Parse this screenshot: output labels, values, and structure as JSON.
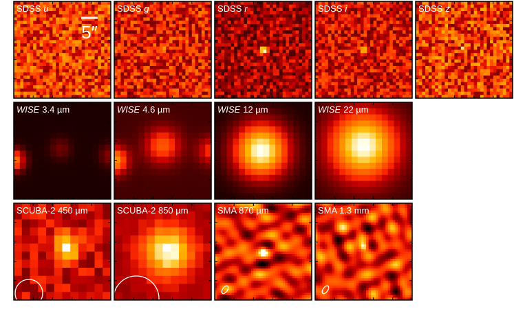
{
  "panels": [
    {
      "label": [
        {
          "text": "SDSS",
          "italic": false
        },
        {
          "text": "u",
          "italic": true
        }
      ]
    },
    {
      "label": [
        {
          "text": "SDSS",
          "italic": false
        },
        {
          "text": "g",
          "italic": true
        }
      ]
    },
    {
      "label": [
        {
          "text": "SDSS",
          "italic": false
        },
        {
          "text": "r",
          "italic": true
        }
      ]
    },
    {
      "label": [
        {
          "text": "SDSS",
          "italic": false
        },
        {
          "text": "i",
          "italic": true
        }
      ]
    },
    {
      "label": [
        {
          "text": "SDSS",
          "italic": false
        },
        {
          "text": "z",
          "italic": true
        }
      ]
    },
    {
      "label": [
        {
          "text": "WISE",
          "italic": true
        },
        {
          "text": "3.4 µm",
          "italic": false
        }
      ]
    },
    {
      "label": [
        {
          "text": "WISE",
          "italic": true
        },
        {
          "text": "4.6 µm",
          "italic": false
        }
      ]
    },
    {
      "label": [
        {
          "text": "WISE",
          "italic": true
        },
        {
          "text": "12 µm",
          "italic": false
        }
      ]
    },
    {
      "label": [
        {
          "text": "WISE",
          "italic": true
        },
        {
          "text": "22 µm",
          "italic": false
        }
      ]
    },
    {
      "label": [
        {
          "text": "SCUBA-2 450 µm",
          "italic": false
        }
      ]
    },
    {
      "label": [
        {
          "text": "SCUBA-2 850 µm",
          "italic": false
        }
      ]
    },
    {
      "label": [
        {
          "text": "SMA 870 µm",
          "italic": false
        }
      ]
    },
    {
      "label": [
        {
          "text": "SMA 1.3 mm",
          "italic": false
        }
      ]
    }
  ],
  "scale_bar": "5″"
}
